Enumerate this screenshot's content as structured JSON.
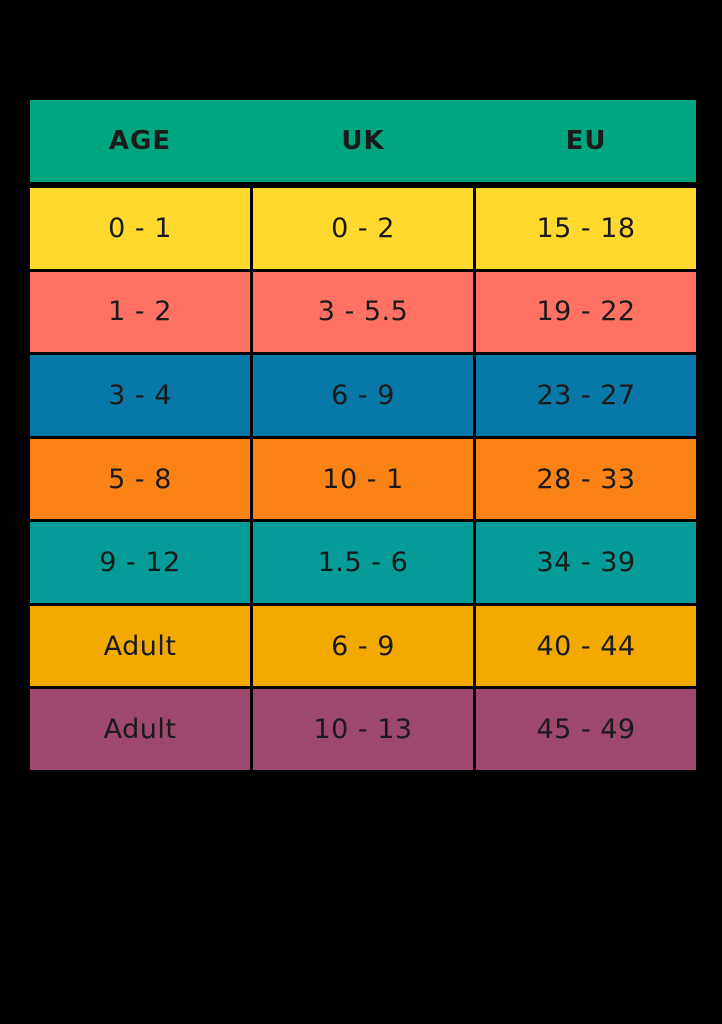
{
  "chart_data": {
    "type": "table",
    "title": "",
    "columns": [
      "AGE",
      "UK",
      "EU"
    ],
    "rows": [
      {
        "age": "0 - 1",
        "uk": "0 - 2",
        "eu": "15 - 18",
        "color": "#FFD92E"
      },
      {
        "age": "1 - 2",
        "uk": "3 - 5.5",
        "eu": "19 - 22",
        "color": "#FF7163"
      },
      {
        "age": "3 - 4",
        "uk": "6 - 9",
        "eu": "23 - 27",
        "color": "#0778A8"
      },
      {
        "age": "5 - 8",
        "uk": "10 - 1",
        "eu": "28 - 33",
        "color": "#FB8214"
      },
      {
        "age": "9 - 12",
        "uk": "1.5 - 6",
        "eu": "34 - 39",
        "color": "#049B98"
      },
      {
        "age": "Adult",
        "uk": "6 - 9",
        "eu": "40 - 44",
        "color": "#F2A900"
      },
      {
        "age": "Adult",
        "uk": "10 - 13",
        "eu": "45 - 49",
        "color": "#9E476F"
      }
    ],
    "layout": {
      "grid": "on",
      "border_color": "#000000",
      "background_color": "#000000",
      "text_color": "#1a1a1a"
    }
  },
  "colors": {
    "header_background": "#00A67E",
    "page_background": "#000000"
  }
}
